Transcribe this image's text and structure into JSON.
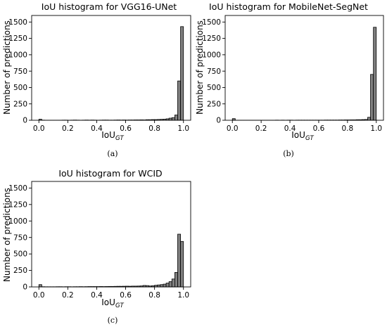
{
  "figure": {
    "captions": [
      "(a)",
      "(b)",
      "(c)"
    ]
  },
  "chart_data": [
    {
      "type": "bar",
      "title": "IoU histogram for VGG16-UNet",
      "xlabel": "IoU",
      "xlabel_subscript": "GT",
      "ylabel": "Number of predictions",
      "xlim": [
        -0.05,
        1.05
      ],
      "ylim": [
        0,
        1600
      ],
      "xticks": [
        "0.0",
        "0.2",
        "0.4",
        "0.6",
        "0.8",
        "1.0"
      ],
      "yticks": [
        "0",
        "250",
        "500",
        "750",
        "1000",
        "1250",
        "1500"
      ],
      "bar_color": "#808080",
      "bin_width": 0.02,
      "bins_start": [
        0.0,
        0.02,
        0.04,
        0.06,
        0.08,
        0.1,
        0.12,
        0.14,
        0.16,
        0.18,
        0.2,
        0.22,
        0.24,
        0.26,
        0.28,
        0.3,
        0.32,
        0.34,
        0.36,
        0.38,
        0.4,
        0.42,
        0.44,
        0.46,
        0.48,
        0.5,
        0.52,
        0.54,
        0.56,
        0.58,
        0.6,
        0.62,
        0.64,
        0.66,
        0.68,
        0.7,
        0.72,
        0.74,
        0.76,
        0.78,
        0.8,
        0.82,
        0.84,
        0.86,
        0.88,
        0.9,
        0.92,
        0.94,
        0.96,
        0.98
      ],
      "values": [
        15,
        2,
        1,
        1,
        1,
        1,
        1,
        1,
        2,
        2,
        1,
        2,
        3,
        2,
        1,
        2,
        3,
        2,
        3,
        2,
        1,
        2,
        3,
        3,
        2,
        2,
        3,
        4,
        3,
        4,
        3,
        4,
        4,
        5,
        5,
        6,
        5,
        8,
        8,
        10,
        10,
        12,
        14,
        16,
        22,
        32,
        40,
        80,
        600,
        1430
      ]
    },
    {
      "type": "bar",
      "title": "IoU histogram for MobileNet-SegNet",
      "xlabel": "IoU",
      "xlabel_subscript": "GT",
      "ylabel": "Number of predictions",
      "xlim": [
        -0.05,
        1.05
      ],
      "ylim": [
        0,
        1600
      ],
      "xticks": [
        "0.0",
        "0.2",
        "0.4",
        "0.6",
        "0.8",
        "1.0"
      ],
      "yticks": [
        "0",
        "250",
        "500",
        "750",
        "1000",
        "1250",
        "1500"
      ],
      "bar_color": "#808080",
      "bin_width": 0.02,
      "bins_start": [
        0.0,
        0.02,
        0.04,
        0.06,
        0.08,
        0.1,
        0.12,
        0.14,
        0.16,
        0.18,
        0.2,
        0.22,
        0.24,
        0.26,
        0.28,
        0.3,
        0.32,
        0.34,
        0.36,
        0.38,
        0.4,
        0.42,
        0.44,
        0.46,
        0.48,
        0.5,
        0.52,
        0.54,
        0.56,
        0.58,
        0.6,
        0.62,
        0.64,
        0.66,
        0.68,
        0.7,
        0.72,
        0.74,
        0.76,
        0.78,
        0.8,
        0.82,
        0.84,
        0.86,
        0.88,
        0.9,
        0.92,
        0.94,
        0.96,
        0.98
      ],
      "values": [
        25,
        1,
        1,
        1,
        1,
        1,
        1,
        1,
        1,
        1,
        1,
        1,
        1,
        1,
        1,
        2,
        1,
        2,
        1,
        2,
        2,
        1,
        2,
        2,
        2,
        2,
        2,
        2,
        2,
        2,
        2,
        2,
        3,
        3,
        3,
        3,
        3,
        4,
        4,
        5,
        5,
        6,
        6,
        8,
        8,
        10,
        12,
        45,
        700,
        1420
      ]
    },
    {
      "type": "bar",
      "title": "IoU histogram for WCID",
      "xlabel": "IoU",
      "xlabel_subscript": "GT",
      "ylabel": "Number of predictions",
      "xlim": [
        -0.05,
        1.05
      ],
      "ylim": [
        0,
        1600
      ],
      "xticks": [
        "0.0",
        "0.2",
        "0.4",
        "0.6",
        "0.8",
        "1.0"
      ],
      "yticks": [
        "0",
        "250",
        "500",
        "750",
        "1000",
        "1250",
        "1500"
      ],
      "bar_color": "#808080",
      "bin_width": 0.02,
      "bins_start": [
        0.0,
        0.02,
        0.04,
        0.06,
        0.08,
        0.1,
        0.12,
        0.14,
        0.16,
        0.18,
        0.2,
        0.22,
        0.24,
        0.26,
        0.28,
        0.3,
        0.32,
        0.34,
        0.36,
        0.38,
        0.4,
        0.42,
        0.44,
        0.46,
        0.48,
        0.5,
        0.52,
        0.54,
        0.56,
        0.58,
        0.6,
        0.62,
        0.64,
        0.66,
        0.68,
        0.7,
        0.72,
        0.74,
        0.76,
        0.78,
        0.8,
        0.82,
        0.84,
        0.86,
        0.88,
        0.9,
        0.92,
        0.94,
        0.96,
        0.98
      ],
      "values": [
        35,
        3,
        2,
        2,
        2,
        2,
        3,
        3,
        2,
        3,
        3,
        2,
        3,
        3,
        4,
        3,
        4,
        5,
        5,
        5,
        5,
        6,
        5,
        6,
        7,
        7,
        8,
        9,
        9,
        10,
        11,
        10,
        12,
        12,
        13,
        15,
        22,
        20,
        14,
        18,
        25,
        30,
        35,
        42,
        58,
        80,
        120,
        220,
        800,
        690
      ]
    }
  ]
}
